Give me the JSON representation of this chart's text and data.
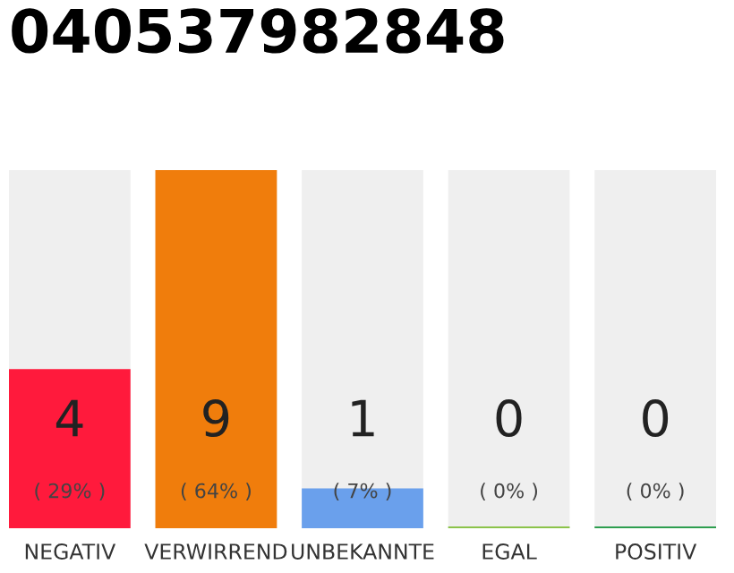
{
  "chart_data": {
    "type": "bar",
    "title": "040537982848",
    "categories": [
      "NEGATIV",
      "VERWIRREND",
      "UNBEKANNTE",
      "EGAL",
      "POSITIV"
    ],
    "values": [
      4,
      9,
      1,
      0,
      0
    ],
    "colors": [
      "#ff1a3c",
      "#f07d0c",
      "#6aa0ec",
      "#8bc34a",
      "#2e9e4f"
    ],
    "value_labels": [
      "4\n( 29% )",
      "9\n( 64% )",
      "1\n( 7% )",
      "0\n( 0% )",
      "0\n( 0% )"
    ],
    "ylim": [
      0,
      9
    ],
    "grid": false,
    "legend": false
  }
}
